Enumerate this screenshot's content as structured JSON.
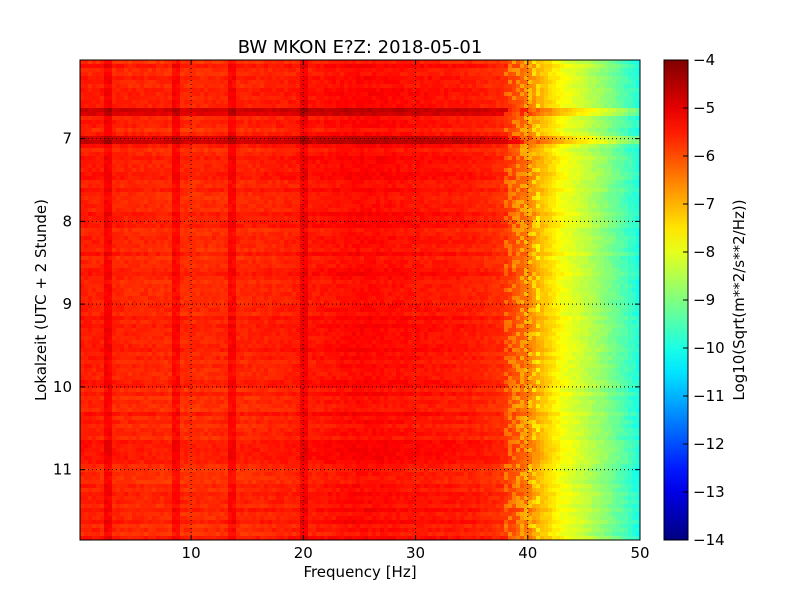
{
  "chart_data": {
    "type": "heatmap",
    "title": "BW MKON E?Z: 2018-05-01",
    "xlabel": "Frequency [Hz]",
    "ylabel": "Lokalzeit (UTC + 2 Stunde)",
    "xlim": [
      0.1,
      50
    ],
    "ylim": [
      11.85,
      6.05
    ],
    "x_ticks": [
      {
        "v": 10,
        "label": "10"
      },
      {
        "v": 20,
        "label": "20"
      },
      {
        "v": 30,
        "label": "30"
      },
      {
        "v": 40,
        "label": "40"
      },
      {
        "v": 50,
        "label": "50"
      }
    ],
    "y_ticks": [
      {
        "v": 7,
        "label": "7"
      },
      {
        "v": 8,
        "label": "8"
      },
      {
        "v": 9,
        "label": "9"
      },
      {
        "v": 10,
        "label": "10"
      },
      {
        "v": 11,
        "label": "11"
      }
    ],
    "grid": true,
    "colormap": "jet",
    "colorbar": {
      "label": "Log10(Sqrt(m**2/s**2/Hz))",
      "vmin": -14,
      "vmax": -4,
      "ticks": [
        {
          "v": -4,
          "label": "−4"
        },
        {
          "v": -5,
          "label": "−5"
        },
        {
          "v": -6,
          "label": "−6"
        },
        {
          "v": -7,
          "label": "−7"
        },
        {
          "v": -8,
          "label": "−8"
        },
        {
          "v": -9,
          "label": "−9"
        },
        {
          "v": -10,
          "label": "−10"
        },
        {
          "v": -11,
          "label": "−11"
        },
        {
          "v": -12,
          "label": "−12"
        },
        {
          "v": -13,
          "label": "−13"
        },
        {
          "v": -14,
          "label": "−14"
        }
      ]
    },
    "frequency_profile": [
      {
        "f": 0.1,
        "v": -5.5
      },
      {
        "f": 5,
        "v": -5.6
      },
      {
        "f": 10,
        "v": -5.65
      },
      {
        "f": 15,
        "v": -5.6
      },
      {
        "f": 20,
        "v": -5.5
      },
      {
        "f": 25,
        "v": -5.3
      },
      {
        "f": 30,
        "v": -5.4
      },
      {
        "f": 35,
        "v": -5.5
      },
      {
        "f": 38,
        "v": -5.7
      },
      {
        "f": 40,
        "v": -6.4
      },
      {
        "f": 41,
        "v": -7.0
      },
      {
        "f": 43,
        "v": -7.8
      },
      {
        "f": 45,
        "v": -8.3
      },
      {
        "f": 47,
        "v": -8.9
      },
      {
        "f": 49,
        "v": -9.6
      },
      {
        "f": 50,
        "v": -10.0
      }
    ],
    "narrow_lines_hz": [
      2.5,
      8.7,
      13.7,
      20.0
    ]
  }
}
